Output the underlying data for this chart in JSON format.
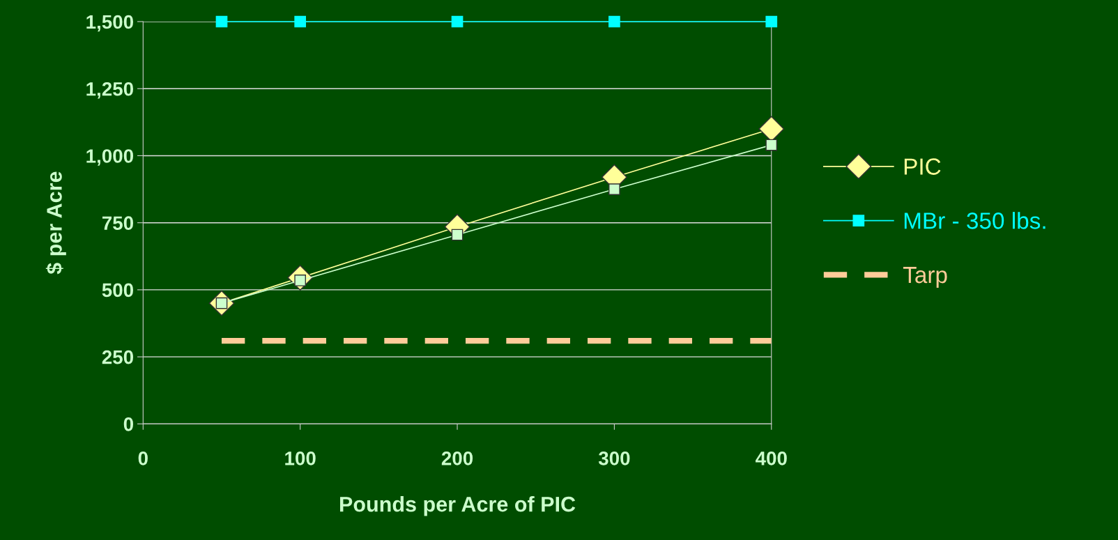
{
  "chart_data": {
    "type": "line",
    "xlabel": "Pounds per Acre of PIC",
    "ylabel": "$ per Acre",
    "x": [
      50,
      100,
      200,
      300,
      400
    ],
    "series": [
      {
        "name": "PIC",
        "color": "#ffff99",
        "values": [
          450,
          545,
          735,
          920,
          1100
        ],
        "marker": "diamond"
      },
      {
        "color": "#ccffcc",
        "values": [
          450,
          535,
          705,
          875,
          1040
        ],
        "marker": "square"
      },
      {
        "name": "MBr - 350 lbs.",
        "color": "#00ffff",
        "values": [
          1500,
          1500,
          1500,
          1500,
          1500
        ],
        "marker": "square"
      },
      {
        "name": "Tarp",
        "color": "#ffcc99",
        "values": [
          310,
          310,
          310,
          310,
          310
        ],
        "marker": "none",
        "line_style": "dashed"
      }
    ],
    "xlim": [
      0,
      400
    ],
    "xticks": [
      0,
      100,
      200,
      300,
      400
    ],
    "ylim": [
      0,
      1500
    ],
    "yticks": [
      {
        "value": 0,
        "label": "0"
      },
      {
        "value": 250,
        "label": "250"
      },
      {
        "value": 500,
        "label": "500"
      },
      {
        "value": 750,
        "label": "750"
      },
      {
        "value": 1000,
        "label": "1,000"
      },
      {
        "value": 1250,
        "label": "1,250"
      },
      {
        "value": 1500,
        "label": "1,500"
      }
    ],
    "grid": "y",
    "legend": "right"
  }
}
